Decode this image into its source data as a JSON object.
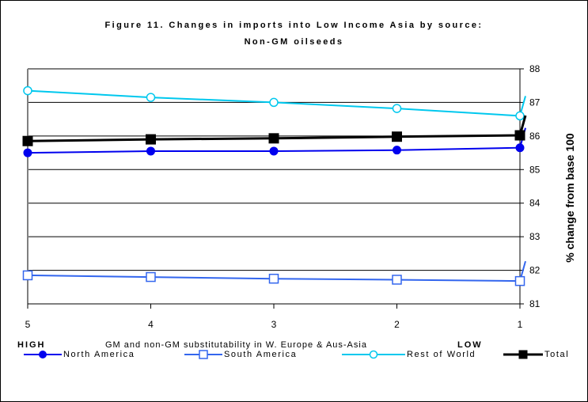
{
  "chart_data": {
    "type": "line",
    "title_line1": "Figure 11. Changes in imports into Low Income Asia by source:",
    "title_line2": "Non-GM oilseeds",
    "xlabel": "GM and non-GM substitutability in W. Europe & Aus-Asia",
    "x_left_label": "HIGH",
    "x_right_label": "LOW",
    "ylabel": "% change from base 100",
    "x": [
      5,
      4,
      3,
      2,
      1
    ],
    "x_tick_labels": [
      "5",
      "4",
      "3",
      "2",
      "1"
    ],
    "ylim": [
      81,
      88
    ],
    "y_ticks": [
      "81",
      "82",
      "83",
      "84",
      "85",
      "86",
      "87",
      "88"
    ],
    "series": [
      {
        "name": "North America",
        "values": [
          85.5,
          85.55,
          85.55,
          85.58,
          85.65
        ],
        "color": "#0000ee",
        "marker": "filled-circle"
      },
      {
        "name": "South America",
        "values": [
          81.85,
          81.8,
          81.75,
          81.72,
          81.68
        ],
        "color": "#3366ee",
        "marker": "open-square"
      },
      {
        "name": "Rest of World",
        "values": [
          87.35,
          87.15,
          87.0,
          86.82,
          86.6
        ],
        "color": "#00c8ee",
        "marker": "open-circle"
      },
      {
        "name": "Total",
        "values": [
          85.85,
          85.9,
          85.93,
          85.98,
          86.02
        ],
        "color": "#000000",
        "marker": "filled-square"
      }
    ],
    "grid": true,
    "legend_position": "bottom"
  }
}
